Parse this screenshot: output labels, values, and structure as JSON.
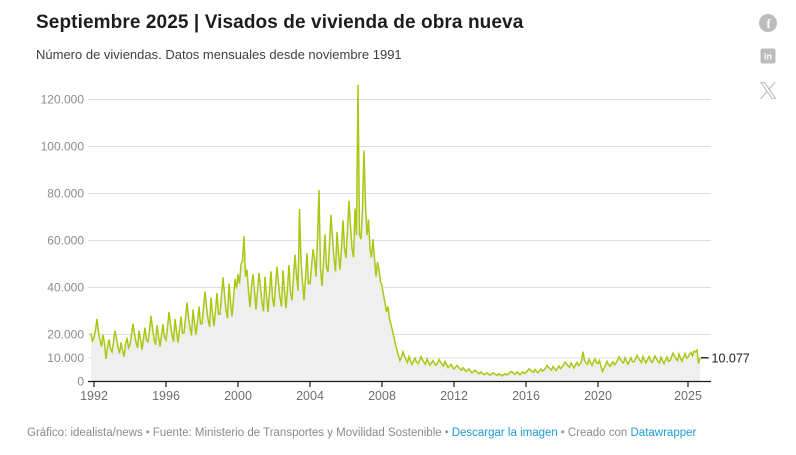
{
  "header": {
    "title": "Septiembre 2025 | Visados de vivienda de obra nueva",
    "subtitle": "Número de viviendas. Datos mensuales desde noviembre 1991"
  },
  "social_icons": [
    "facebook",
    "linkedin",
    "x"
  ],
  "chart_data": {
    "type": "line",
    "title": "Septiembre 2025 | Visados de vivienda de obra nueva",
    "subtitle": "Número de viviendas. Datos mensuales desde noviembre 1991",
    "unit": "viviendas",
    "frequency": "monthly",
    "start_month": "1991-11",
    "end_month": "2025-09",
    "grid": true,
    "ylim": [
      0,
      126400
    ],
    "xlim_decimal_years": [
      1991.8333,
      2025.6667
    ],
    "end_label": "10.077",
    "last_value": 10077,
    "y_ticks": [
      {
        "value": 0,
        "label": "0"
      },
      {
        "value": 10000,
        "label": "10.000"
      },
      {
        "value": 20000,
        "label": "20.000"
      },
      {
        "value": 40000,
        "label": "40.000"
      },
      {
        "value": 60000,
        "label": "60.000"
      },
      {
        "value": 80000,
        "label": "80.000"
      },
      {
        "value": 100000,
        "label": "100.000"
      },
      {
        "value": 120000,
        "label": "120.000"
      }
    ],
    "x_ticks": [
      {
        "year": 1992,
        "label": "1992"
      },
      {
        "year": 1996,
        "label": "1996"
      },
      {
        "year": 2000,
        "label": "2000"
      },
      {
        "year": 2004,
        "label": "2004"
      },
      {
        "year": 2008,
        "label": "2008"
      },
      {
        "year": 2012,
        "label": "2012"
      },
      {
        "year": 2016,
        "label": "2016"
      },
      {
        "year": 2020,
        "label": "2020"
      },
      {
        "year": 2025,
        "label": "2025"
      }
    ],
    "series": [
      {
        "name": "Visados de vivienda de obra nueva",
        "values": [
          20500,
          17300,
          18600,
          22100,
          26600,
          21100,
          17600,
          14900,
          19900,
          16300,
          9600,
          14600,
          17900,
          13900,
          12600,
          16900,
          21600,
          18300,
          14600,
          11900,
          16600,
          13300,
          10600,
          15900,
          18600,
          14300,
          15600,
          19900,
          24600,
          20200,
          16900,
          14300,
          21600,
          17900,
          13600,
          18300,
          22900,
          17600,
          16900,
          21600,
          27900,
          22600,
          18300,
          15600,
          23900,
          19300,
          14900,
          19600,
          24300,
          18900,
          17600,
          22900,
          29600,
          24300,
          19900,
          16900,
          26600,
          21300,
          16600,
          21900,
          27600,
          20600,
          20600,
          26900,
          33600,
          27300,
          22900,
          19600,
          30600,
          24900,
          19900,
          25600,
          31900,
          24600,
          24600,
          31600,
          38300,
          31900,
          26600,
          23300,
          35600,
          28900,
          23600,
          30300,
          37600,
          28600,
          28600,
          36600,
          44300,
          36900,
          30600,
          26900,
          41600,
          33900,
          27600,
          35300,
          43600,
          39600,
          45600,
          41600,
          49900,
          51300,
          61900,
          44600,
          47600,
          38300,
          31600,
          40300,
          45600,
          38600,
          30600,
          38600,
          46300,
          39900,
          33600,
          29900,
          44600,
          36300,
          29600,
          37900,
          46900,
          35600,
          31600,
          40600,
          48900,
          41600,
          35600,
          31900,
          47300,
          38600,
          31300,
          39900,
          49600,
          37600,
          34600,
          44600,
          53900,
          45300,
          38600,
          73400,
          51600,
          42300,
          34600,
          43900,
          54600,
          41600,
          41600,
          48600,
          56300,
          52300,
          44600,
          60900,
          81400,
          48300,
          40600,
          50900,
          62600,
          48600,
          46600,
          58600,
          70900,
          60900,
          52600,
          46900,
          63600,
          54300,
          47600,
          56900,
          68600,
          56600,
          52600,
          64600,
          76900,
          66300,
          56600,
          52900,
          73600,
          62300,
          126300,
          62600,
          60600,
          73400,
          98300,
          75600,
          62300,
          68900,
          56600,
          52900,
          60600,
          52300,
          44600,
          50900,
          47600,
          42600,
          40600,
          36900,
          33300,
          29600,
          31900,
          26600,
          24300,
          21600,
          18900,
          15600,
          13300,
          10900,
          8900,
          10300,
          12600,
          10900,
          9300,
          8100,
          10600,
          8900,
          7300,
          8600,
          9900,
          8300,
          7600,
          8900,
          10600,
          9300,
          8100,
          7300,
          9600,
          8300,
          6900,
          7900,
          8900,
          7600,
          6900,
          7900,
          9300,
          8300,
          7300,
          6600,
          8600,
          7300,
          5900,
          6600,
          7300,
          6100,
          5300,
          6100,
          6900,
          6100,
          5300,
          4800,
          5900,
          5100,
          4300,
          4800,
          5300,
          4400,
          3700,
          4200,
          4800,
          4200,
          3700,
          3300,
          4100,
          3500,
          2900,
          3300,
          3700,
          3100,
          2700,
          3100,
          3700,
          3300,
          2900,
          2600,
          3400,
          2900,
          2400,
          2900,
          3300,
          2800,
          3100,
          3600,
          4300,
          3900,
          3400,
          3100,
          4100,
          3500,
          2900,
          3600,
          4100,
          3400,
          3900,
          4600,
          5400,
          4900,
          4300,
          3900,
          5100,
          4400,
          3700,
          4600,
          5300,
          4400,
          4900,
          5800,
          6800,
          6100,
          5400,
          4900,
          6400,
          5500,
          4700,
          5800,
          6600,
          5500,
          6100,
          7100,
          8300,
          7400,
          6600,
          6100,
          7900,
          6800,
          5800,
          7100,
          8100,
          6800,
          7300,
          8600,
          12700,
          8900,
          7900,
          7300,
          9400,
          8100,
          6900,
          8400,
          9600,
          8000,
          7600,
          8900,
          6400,
          4300,
          5600,
          6900,
          8600,
          7300,
          6400,
          7600,
          8400,
          7100,
          7900,
          9100,
          10600,
          9400,
          8400,
          7900,
          10100,
          8600,
          7400,
          8900,
          10100,
          8400,
          8400,
          9600,
          11100,
          9900,
          8900,
          8100,
          10600,
          9100,
          7900,
          9400,
          10600,
          8900,
          8100,
          9400,
          10900,
          9600,
          8600,
          7900,
          10400,
          8900,
          7600,
          9100,
          10400,
          8600,
          8900,
          10400,
          12100,
          10900,
          9600,
          8900,
          11600,
          9900,
          8600,
          10400,
          11900,
          9900,
          10400,
          11600,
          12400,
          10900,
          12900,
          12600,
          13400,
          7600,
          10077
        ]
      }
    ],
    "colors": {
      "line": "#a9c814",
      "area": "#efefef",
      "grid": "#dedede",
      "axis": "#1a1a1a",
      "tick_label": "#6e6e6e",
      "y_label": "#8c8c8c",
      "end_label_text": "#1d1d1d",
      "icon_gray": "#bcbcbc"
    }
  },
  "footer": {
    "credit": "Gráfico: idealista/news",
    "separator": "•",
    "source": "Fuente: Ministerio de Transportes y Movilidad Sostenible",
    "download_label": "Descargar la imagen",
    "created_with": "Creado con",
    "datawrapper_label": "Datawrapper",
    "link_color": "#1d9bd7"
  }
}
